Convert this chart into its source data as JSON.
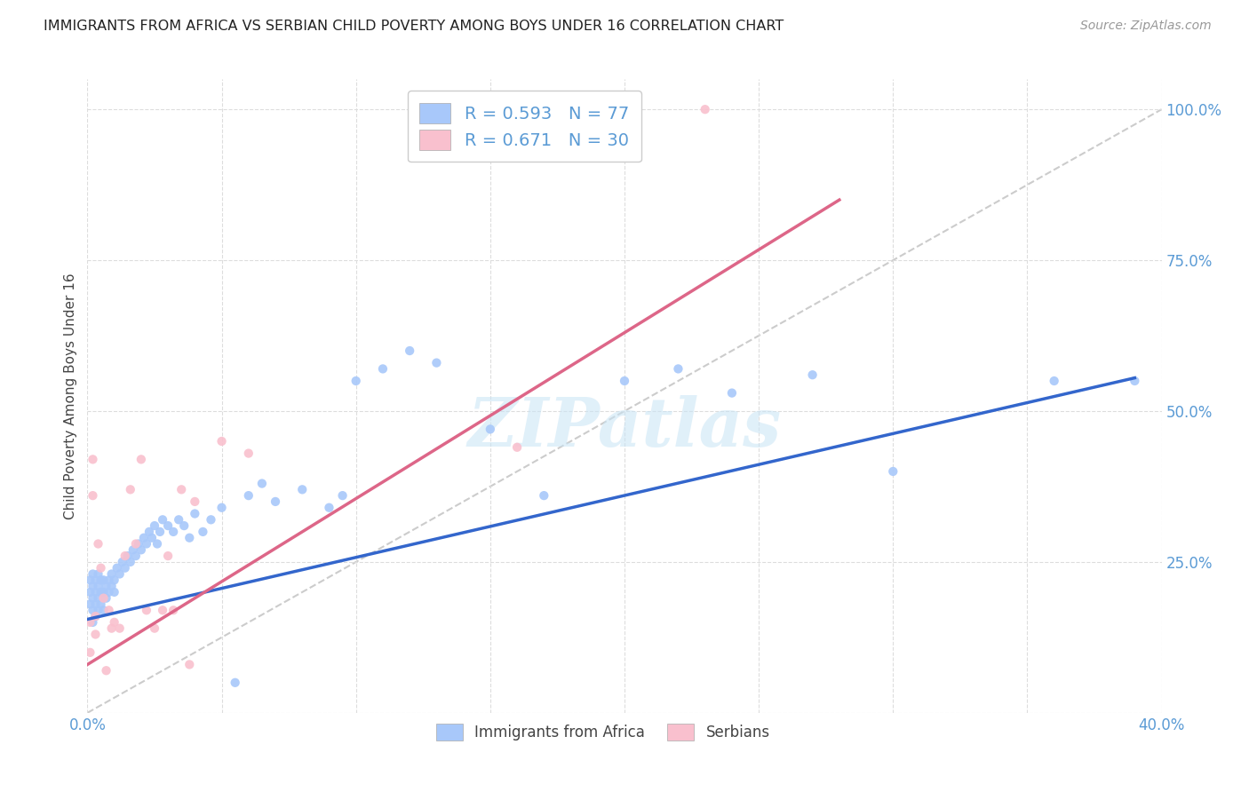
{
  "title": "IMMIGRANTS FROM AFRICA VS SERBIAN CHILD POVERTY AMONG BOYS UNDER 16 CORRELATION CHART",
  "source": "Source: ZipAtlas.com",
  "ylabel": "Child Poverty Among Boys Under 16",
  "xlim": [
    0.0,
    0.4
  ],
  "ylim": [
    0.0,
    1.05
  ],
  "xticks": [
    0.0,
    0.05,
    0.1,
    0.15,
    0.2,
    0.25,
    0.3,
    0.35,
    0.4
  ],
  "yticks": [
    0.0,
    0.25,
    0.5,
    0.75,
    1.0
  ],
  "legend_blue_r": "0.593",
  "legend_blue_n": "77",
  "legend_pink_r": "0.671",
  "legend_pink_n": "30",
  "blue_color": "#a8c8fa",
  "pink_color": "#f9c0ce",
  "blue_line_color": "#3366cc",
  "pink_line_color": "#dd6688",
  "diagonal_color": "#cccccc",
  "background_color": "#ffffff",
  "grid_color": "#dddddd",
  "watermark": "ZIPatlas",
  "blue_scatter_x": [
    0.001,
    0.001,
    0.001,
    0.002,
    0.002,
    0.002,
    0.002,
    0.002,
    0.003,
    0.003,
    0.003,
    0.003,
    0.004,
    0.004,
    0.004,
    0.004,
    0.005,
    0.005,
    0.005,
    0.006,
    0.006,
    0.006,
    0.007,
    0.007,
    0.008,
    0.008,
    0.009,
    0.009,
    0.01,
    0.01,
    0.011,
    0.012,
    0.013,
    0.014,
    0.015,
    0.016,
    0.017,
    0.018,
    0.019,
    0.02,
    0.021,
    0.022,
    0.023,
    0.024,
    0.025,
    0.026,
    0.027,
    0.028,
    0.03,
    0.032,
    0.034,
    0.036,
    0.038,
    0.04,
    0.043,
    0.046,
    0.05,
    0.055,
    0.06,
    0.065,
    0.07,
    0.08,
    0.09,
    0.095,
    0.1,
    0.11,
    0.12,
    0.13,
    0.15,
    0.17,
    0.2,
    0.22,
    0.24,
    0.27,
    0.3,
    0.36,
    0.39
  ],
  "blue_scatter_y": [
    0.18,
    0.2,
    0.22,
    0.17,
    0.19,
    0.21,
    0.23,
    0.15,
    0.16,
    0.18,
    0.2,
    0.22,
    0.19,
    0.21,
    0.23,
    0.17,
    0.18,
    0.2,
    0.22,
    0.17,
    0.2,
    0.22,
    0.19,
    0.21,
    0.2,
    0.22,
    0.21,
    0.23,
    0.2,
    0.22,
    0.24,
    0.23,
    0.25,
    0.24,
    0.26,
    0.25,
    0.27,
    0.26,
    0.28,
    0.27,
    0.29,
    0.28,
    0.3,
    0.29,
    0.31,
    0.28,
    0.3,
    0.32,
    0.31,
    0.3,
    0.32,
    0.31,
    0.29,
    0.33,
    0.3,
    0.32,
    0.34,
    0.05,
    0.36,
    0.38,
    0.35,
    0.37,
    0.34,
    0.36,
    0.55,
    0.57,
    0.6,
    0.58,
    0.47,
    0.36,
    0.55,
    0.57,
    0.53,
    0.56,
    0.4,
    0.55,
    0.55
  ],
  "pink_scatter_x": [
    0.001,
    0.001,
    0.002,
    0.002,
    0.003,
    0.003,
    0.004,
    0.005,
    0.006,
    0.007,
    0.008,
    0.009,
    0.01,
    0.012,
    0.014,
    0.016,
    0.018,
    0.02,
    0.022,
    0.025,
    0.028,
    0.03,
    0.032,
    0.035,
    0.038,
    0.04,
    0.05,
    0.06,
    0.16,
    0.23
  ],
  "pink_scatter_y": [
    0.15,
    0.1,
    0.42,
    0.36,
    0.16,
    0.13,
    0.28,
    0.24,
    0.19,
    0.07,
    0.17,
    0.14,
    0.15,
    0.14,
    0.26,
    0.37,
    0.28,
    0.42,
    0.17,
    0.14,
    0.17,
    0.26,
    0.17,
    0.37,
    0.08,
    0.35,
    0.45,
    0.43,
    0.44,
    1.0
  ],
  "blue_line_x0": 0.0,
  "blue_line_x1": 0.39,
  "blue_line_y0": 0.155,
  "blue_line_y1": 0.555,
  "pink_line_x0": 0.0,
  "pink_line_x1": 0.28,
  "pink_line_y0": 0.08,
  "pink_line_y1": 0.85
}
